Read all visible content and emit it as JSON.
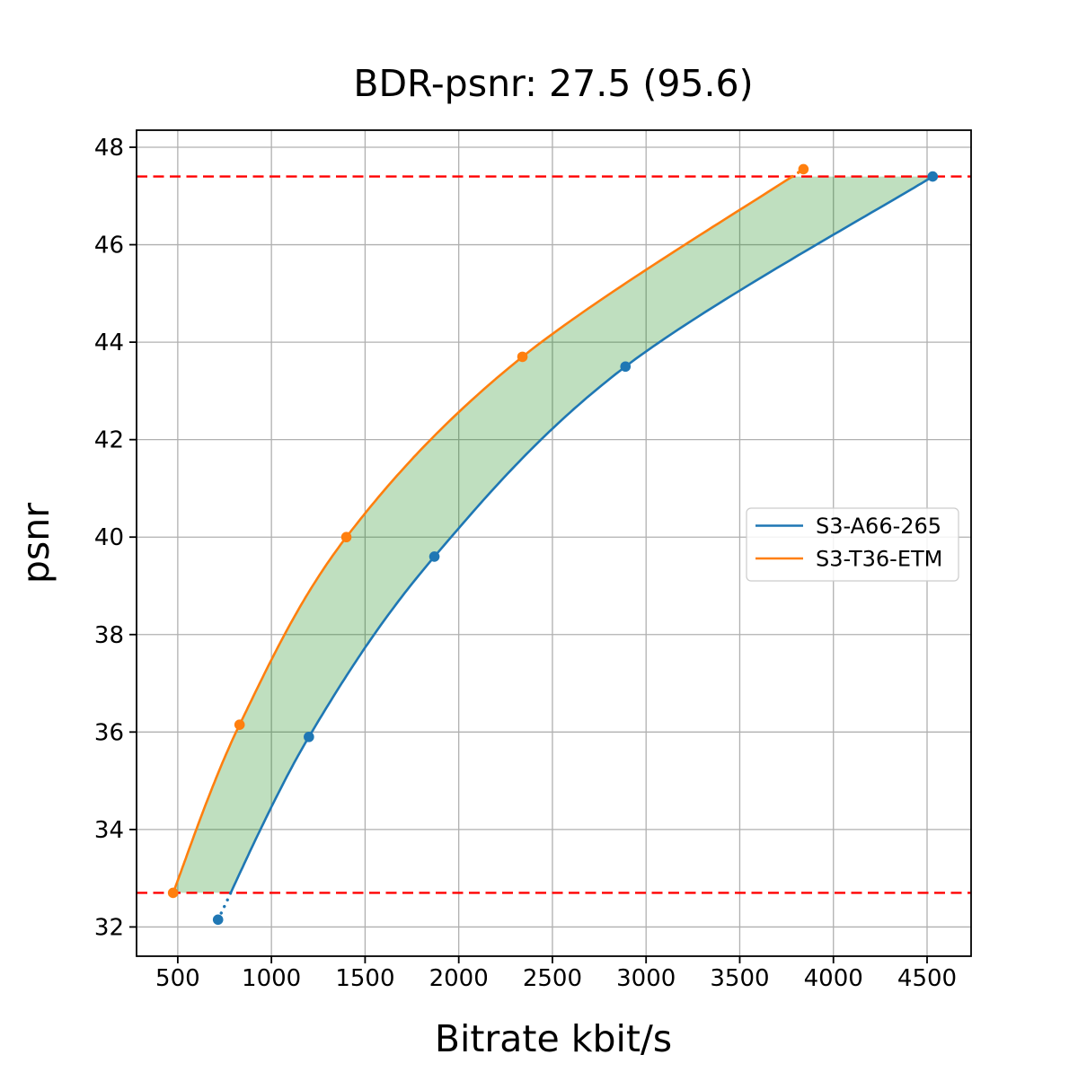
{
  "chart_data": {
    "type": "line",
    "title": "BDR-psnr: 27.5 (95.6)",
    "xlabel": "Bitrate kbit/s",
    "ylabel": "psnr",
    "xlim": [
      280,
      4735
    ],
    "ylim": [
      31.4,
      48.35
    ],
    "xticks": [
      500,
      1000,
      1500,
      2000,
      2500,
      3000,
      3500,
      4000,
      4500
    ],
    "yticks": [
      32,
      34,
      36,
      38,
      40,
      42,
      44,
      46,
      48
    ],
    "grid": true,
    "grid_color": "#b0b0b0",
    "legend_position": "center right",
    "series": [
      {
        "name": "S3-A66-265",
        "color": "#1f77b4",
        "points": [
          [
            715,
            32.15
          ],
          [
            1200,
            35.9
          ],
          [
            1870,
            39.6
          ],
          [
            2890,
            43.5
          ],
          [
            4530,
            47.4
          ]
        ]
      },
      {
        "name": "S3-T36-ETM",
        "color": "#ff7f0e",
        "points": [
          [
            475,
            32.7
          ],
          [
            830,
            36.15
          ],
          [
            1400,
            40.0
          ],
          [
            2340,
            43.7
          ],
          [
            3840,
            47.55
          ]
        ]
      }
    ],
    "overlap_reference_lines": {
      "color": "#ff0000",
      "style": "dashed",
      "y_values": [
        32.7,
        47.4
      ]
    },
    "bd_gap_fill": {
      "color": "rgba(0,128,0,0.25)",
      "between_psnr": [
        32.7,
        47.4
      ]
    }
  }
}
